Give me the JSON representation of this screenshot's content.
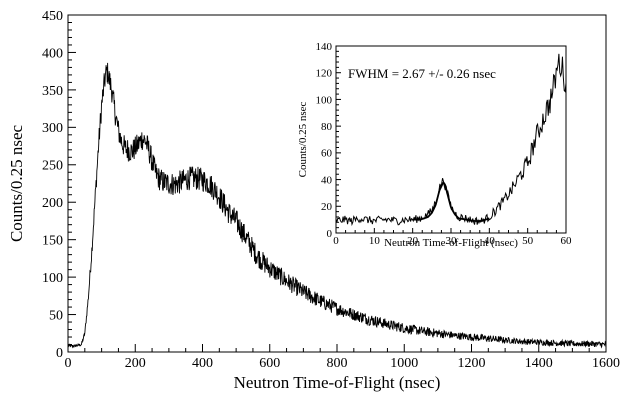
{
  "chart_data": [
    {
      "type": "line",
      "role": "main",
      "title": "",
      "xlabel": "Neutron Time-of-Flight (nsec)",
      "ylabel": "Counts/0.25 nsec",
      "xlim": [
        0,
        1600
      ],
      "ylim": [
        0,
        450
      ],
      "x_ticks": [
        0,
        200,
        400,
        600,
        800,
        1000,
        1200,
        1400,
        1600
      ],
      "y_ticks": [
        0,
        50,
        100,
        150,
        200,
        250,
        300,
        350,
        400,
        450
      ],
      "grid": false,
      "legend": "none",
      "line_color": "#000000",
      "series": [
        {
          "x": [
            0,
            20,
            40,
            50,
            60,
            70,
            80,
            90,
            100,
            110,
            115,
            120,
            130,
            140,
            150,
            160,
            170,
            180,
            190,
            200,
            210,
            220,
            230,
            240,
            250,
            260,
            270,
            280,
            290,
            300,
            320,
            340,
            360,
            380,
            400,
            420,
            440,
            460,
            480,
            500,
            520,
            540,
            560,
            580,
            600,
            650,
            700,
            750,
            800,
            850,
            900,
            950,
            1000,
            1050,
            1100,
            1150,
            1200,
            1250,
            1300,
            1350,
            1400,
            1450,
            1500,
            1550,
            1600
          ],
          "values": [
            8,
            8,
            10,
            25,
            70,
            130,
            200,
            270,
            330,
            365,
            375,
            370,
            350,
            320,
            295,
            280,
            272,
            270,
            268,
            272,
            278,
            285,
            282,
            270,
            255,
            240,
            232,
            228,
            226,
            225,
            224,
            228,
            232,
            232,
            230,
            225,
            215,
            200,
            185,
            175,
            160,
            145,
            130,
            120,
            112,
            95,
            80,
            68,
            58,
            50,
            43,
            37,
            32,
            28,
            25,
            22,
            20,
            18,
            16,
            14,
            13,
            12,
            11,
            11,
            10
          ],
          "noise": [
            2,
            2,
            2,
            3,
            6,
            9,
            12,
            14,
            16,
            16,
            16,
            16,
            16,
            16,
            16,
            16,
            16,
            16,
            16,
            16,
            16,
            16,
            16,
            16,
            16,
            16,
            16,
            16,
            16,
            16,
            16,
            16,
            16,
            16,
            16,
            16,
            16,
            16,
            16,
            16,
            15,
            15,
            14,
            14,
            13,
            12,
            11,
            10,
            9,
            8,
            8,
            7,
            7,
            6,
            6,
            5,
            5,
            5,
            4,
            4,
            4,
            4,
            4,
            4,
            4
          ]
        }
      ]
    },
    {
      "type": "line",
      "role": "inset",
      "title": "",
      "annotation": "FWHM = 2.67 +/- 0.26 nsec",
      "xlabel": "Neutron Time-of-Flight (nsec)",
      "ylabel": "Counts/0.25 nsec",
      "xlim": [
        0,
        60
      ],
      "ylim": [
        0,
        140
      ],
      "x_ticks": [
        0,
        10,
        20,
        30,
        40,
        50,
        60
      ],
      "y_ticks": [
        0,
        20,
        40,
        60,
        80,
        100,
        120,
        140
      ],
      "grid": false,
      "legend": "none",
      "line_color": "#000000",
      "fit_color": "#000000",
      "series": [
        {
          "name": "",
          "x": [
            0,
            2,
            4,
            6,
            8,
            10,
            12,
            14,
            16,
            18,
            20,
            22,
            24,
            25,
            26,
            27,
            28,
            29,
            30,
            31,
            32,
            34,
            36,
            38,
            40,
            42,
            44,
            46,
            48,
            50,
            52,
            54,
            56,
            57,
            58,
            59,
            60
          ],
          "values": [
            9,
            10,
            9,
            11,
            10,
            9,
            10,
            10,
            9,
            10,
            10,
            11,
            14,
            17,
            23,
            34,
            40,
            30,
            20,
            15,
            12,
            11,
            9,
            9,
            12,
            18,
            25,
            33,
            43,
            52,
            70,
            85,
            100,
            112,
            128,
            124,
            110
          ],
          "noise": [
            3,
            3,
            3,
            3,
            3,
            3,
            3,
            3,
            3,
            3,
            3,
            3,
            3,
            3,
            3,
            3,
            3,
            3,
            3,
            3,
            3,
            3,
            3,
            3,
            3,
            4,
            4,
            5,
            6,
            7,
            8,
            9,
            10,
            10,
            10,
            10,
            10
          ]
        },
        {
          "name": "",
          "role": "fit",
          "x": [
            20,
            22,
            24,
            25,
            26,
            27,
            28,
            28.5,
            29,
            30,
            31,
            32,
            34,
            36,
            38,
            40
          ],
          "values": [
            10,
            10,
            12,
            15,
            21,
            32,
            38,
            36,
            30,
            19,
            14,
            11,
            10,
            9,
            9,
            11
          ]
        }
      ]
    }
  ]
}
